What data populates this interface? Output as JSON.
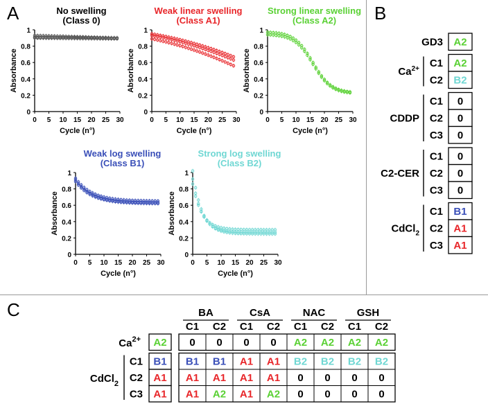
{
  "panel_labels": {
    "a": "A",
    "b": "B",
    "c": "C"
  },
  "class_colors": {
    "0": "#000000",
    "A1": "#e8262a",
    "A2": "#5ad134",
    "B1": "#3a4fb8",
    "B2": "#6fd7d3"
  },
  "chart_data": [
    {
      "type": "scatter",
      "id": "class0",
      "title_line1": "No swelling",
      "title_line2": "(Class 0)",
      "title_color": "#000000",
      "marker_color": "#555555",
      "xlabel": "Cycle (n°)",
      "ylabel": "Absorbance",
      "xlim": [
        0,
        30
      ],
      "ylim": [
        0,
        1
      ],
      "xticks": [
        "0",
        "5",
        "10",
        "15",
        "20",
        "25",
        "30"
      ],
      "yticks": [
        "0",
        "0.2",
        "0.4",
        "0.6",
        "0.8",
        "1"
      ],
      "series": [
        {
          "name": "replicate 1",
          "start": 0.93,
          "end": 0.9,
          "shape": "flat"
        },
        {
          "name": "replicate 2",
          "start": 0.9,
          "end": 0.89,
          "shape": "flat"
        },
        {
          "name": "replicate 3",
          "start": 0.91,
          "end": 0.9,
          "shape": "flat"
        }
      ]
    },
    {
      "type": "scatter",
      "id": "classA1",
      "title_line1": "Weak linear swelling",
      "title_line2": "(Class A1)",
      "title_color": "#e8262a",
      "marker_color": "#e8262a",
      "xlabel": "Cycle (n°)",
      "ylabel": "Absorbance",
      "xlim": [
        0,
        30
      ],
      "ylim": [
        0,
        1
      ],
      "xticks": [
        "0",
        "5",
        "10",
        "15",
        "20",
        "25",
        "30"
      ],
      "yticks": [
        "0",
        "0.2",
        "0.4",
        "0.6",
        "0.8",
        "1"
      ],
      "series": [
        {
          "name": "replicate 1",
          "start": 0.95,
          "end": 0.67,
          "shape": "linear"
        },
        {
          "name": "replicate 2",
          "start": 0.93,
          "end": 0.63,
          "shape": "linear"
        },
        {
          "name": "replicate 3",
          "start": 0.89,
          "end": 0.56,
          "shape": "linear"
        }
      ]
    },
    {
      "type": "scatter",
      "id": "classA2",
      "title_line1": "Strong linear swelling",
      "title_line2": "(Class A2)",
      "title_color": "#5ad134",
      "marker_color": "#5ad134",
      "xlabel": "Cycle (n°)",
      "ylabel": "Absorbance",
      "xlim": [
        0,
        30
      ],
      "ylim": [
        0,
        1
      ],
      "xticks": [
        "0",
        "5",
        "10",
        "15",
        "20",
        "25",
        "30"
      ],
      "yticks": [
        "0",
        "0.2",
        "0.4",
        "0.6",
        "0.8",
        "1"
      ],
      "series": [
        {
          "name": "replicate 1",
          "start": 0.97,
          "end": 0.24,
          "shape": "sigmoid"
        },
        {
          "name": "replicate 2",
          "start": 0.94,
          "end": 0.23,
          "shape": "sigmoid"
        }
      ]
    },
    {
      "type": "scatter",
      "id": "classB1",
      "title_line1": "Weak log swelling",
      "title_line2": "(Class B1)",
      "title_color": "#3a4fb8",
      "marker_color": "#3a4fb8",
      "xlabel": "Cycle (n°)",
      "ylabel": "Absorbance",
      "xlim": [
        0,
        30
      ],
      "ylim": [
        0,
        1
      ],
      "xticks": [
        "0",
        "5",
        "10",
        "15",
        "20",
        "25",
        "30"
      ],
      "yticks": [
        "0",
        "0.2",
        "0.4",
        "0.6",
        "0.8",
        "1"
      ],
      "series": [
        {
          "name": "replicate 1",
          "start": 0.91,
          "end": 0.63,
          "shape": "log"
        },
        {
          "name": "replicate 2",
          "start": 0.89,
          "end": 0.62,
          "shape": "log"
        },
        {
          "name": "replicate 3",
          "start": 0.93,
          "end": 0.65,
          "shape": "log"
        }
      ]
    },
    {
      "type": "scatter",
      "id": "classB2",
      "title_line1": "Strong log swelling",
      "title_line2": "(Class B2)",
      "title_color": "#6fd7d3",
      "marker_color": "#6fd7d3",
      "xlabel": "Cycle (n°)",
      "ylabel": "Absorbance",
      "xlim": [
        0,
        30
      ],
      "ylim": [
        0,
        1
      ],
      "xticks": [
        "0",
        "5",
        "10",
        "15",
        "20",
        "25",
        "30"
      ],
      "yticks": [
        "0",
        "0.2",
        "0.4",
        "0.6",
        "0.8",
        "1"
      ],
      "series": [
        {
          "name": "replicate 1",
          "start": 1.02,
          "end": 0.25,
          "shape": "fastlog"
        },
        {
          "name": "replicate 2",
          "start": 0.92,
          "end": 0.27,
          "shape": "fastlog"
        },
        {
          "name": "replicate 3",
          "start": 0.86,
          "end": 0.3,
          "shape": "fastlog"
        }
      ]
    }
  ],
  "panel_b": {
    "gd3": {
      "label": "GD3",
      "value": "A2"
    },
    "groups": [
      {
        "label": "Ca",
        "sup": "2+",
        "sub": "",
        "rows": [
          {
            "cond": "C1",
            "value": "A2"
          },
          {
            "cond": "C2",
            "value": "B2"
          }
        ]
      },
      {
        "label": "CDDP",
        "sup": "",
        "sub": "",
        "rows": [
          {
            "cond": "C1",
            "value": "0"
          },
          {
            "cond": "C2",
            "value": "0"
          },
          {
            "cond": "C3",
            "value": "0"
          }
        ]
      },
      {
        "label": "C2-CER",
        "sup": "",
        "sub": "",
        "rows": [
          {
            "cond": "C1",
            "value": "0"
          },
          {
            "cond": "C2",
            "value": "0"
          },
          {
            "cond": "C3",
            "value": "0"
          }
        ]
      },
      {
        "label": "CdCl",
        "sup": "",
        "sub": "2",
        "rows": [
          {
            "cond": "C1",
            "value": "B1"
          },
          {
            "cond": "C2",
            "value": "A1"
          },
          {
            "cond": "C3",
            "value": "A1"
          }
        ]
      }
    ]
  },
  "panel_c": {
    "treatments": [
      "BA",
      "CsA",
      "NAC",
      "GSH"
    ],
    "subcols": [
      "C1",
      "C2",
      "C1",
      "C2",
      "C1",
      "C2",
      "C1",
      "C2"
    ],
    "ca": {
      "label": "Ca",
      "sup": "2+",
      "base": "A2",
      "values": [
        "0",
        "0",
        "0",
        "0",
        "A2",
        "A2",
        "A2",
        "A2"
      ]
    },
    "cdcl": {
      "label": "CdCl",
      "sub": "2",
      "rows": [
        {
          "cond": "C1",
          "base": "B1",
          "values": [
            "B1",
            "B1",
            "A1",
            "A1",
            "B2",
            "B2",
            "B2",
            "B2"
          ]
        },
        {
          "cond": "C2",
          "base": "A1",
          "values": [
            "A1",
            "A1",
            "A1",
            "A1",
            "0",
            "0",
            "0",
            "0"
          ]
        },
        {
          "cond": "C3",
          "base": "A1",
          "values": [
            "A1",
            "A2",
            "A1",
            "A2",
            "0",
            "0",
            "0",
            "0"
          ]
        }
      ]
    }
  }
}
